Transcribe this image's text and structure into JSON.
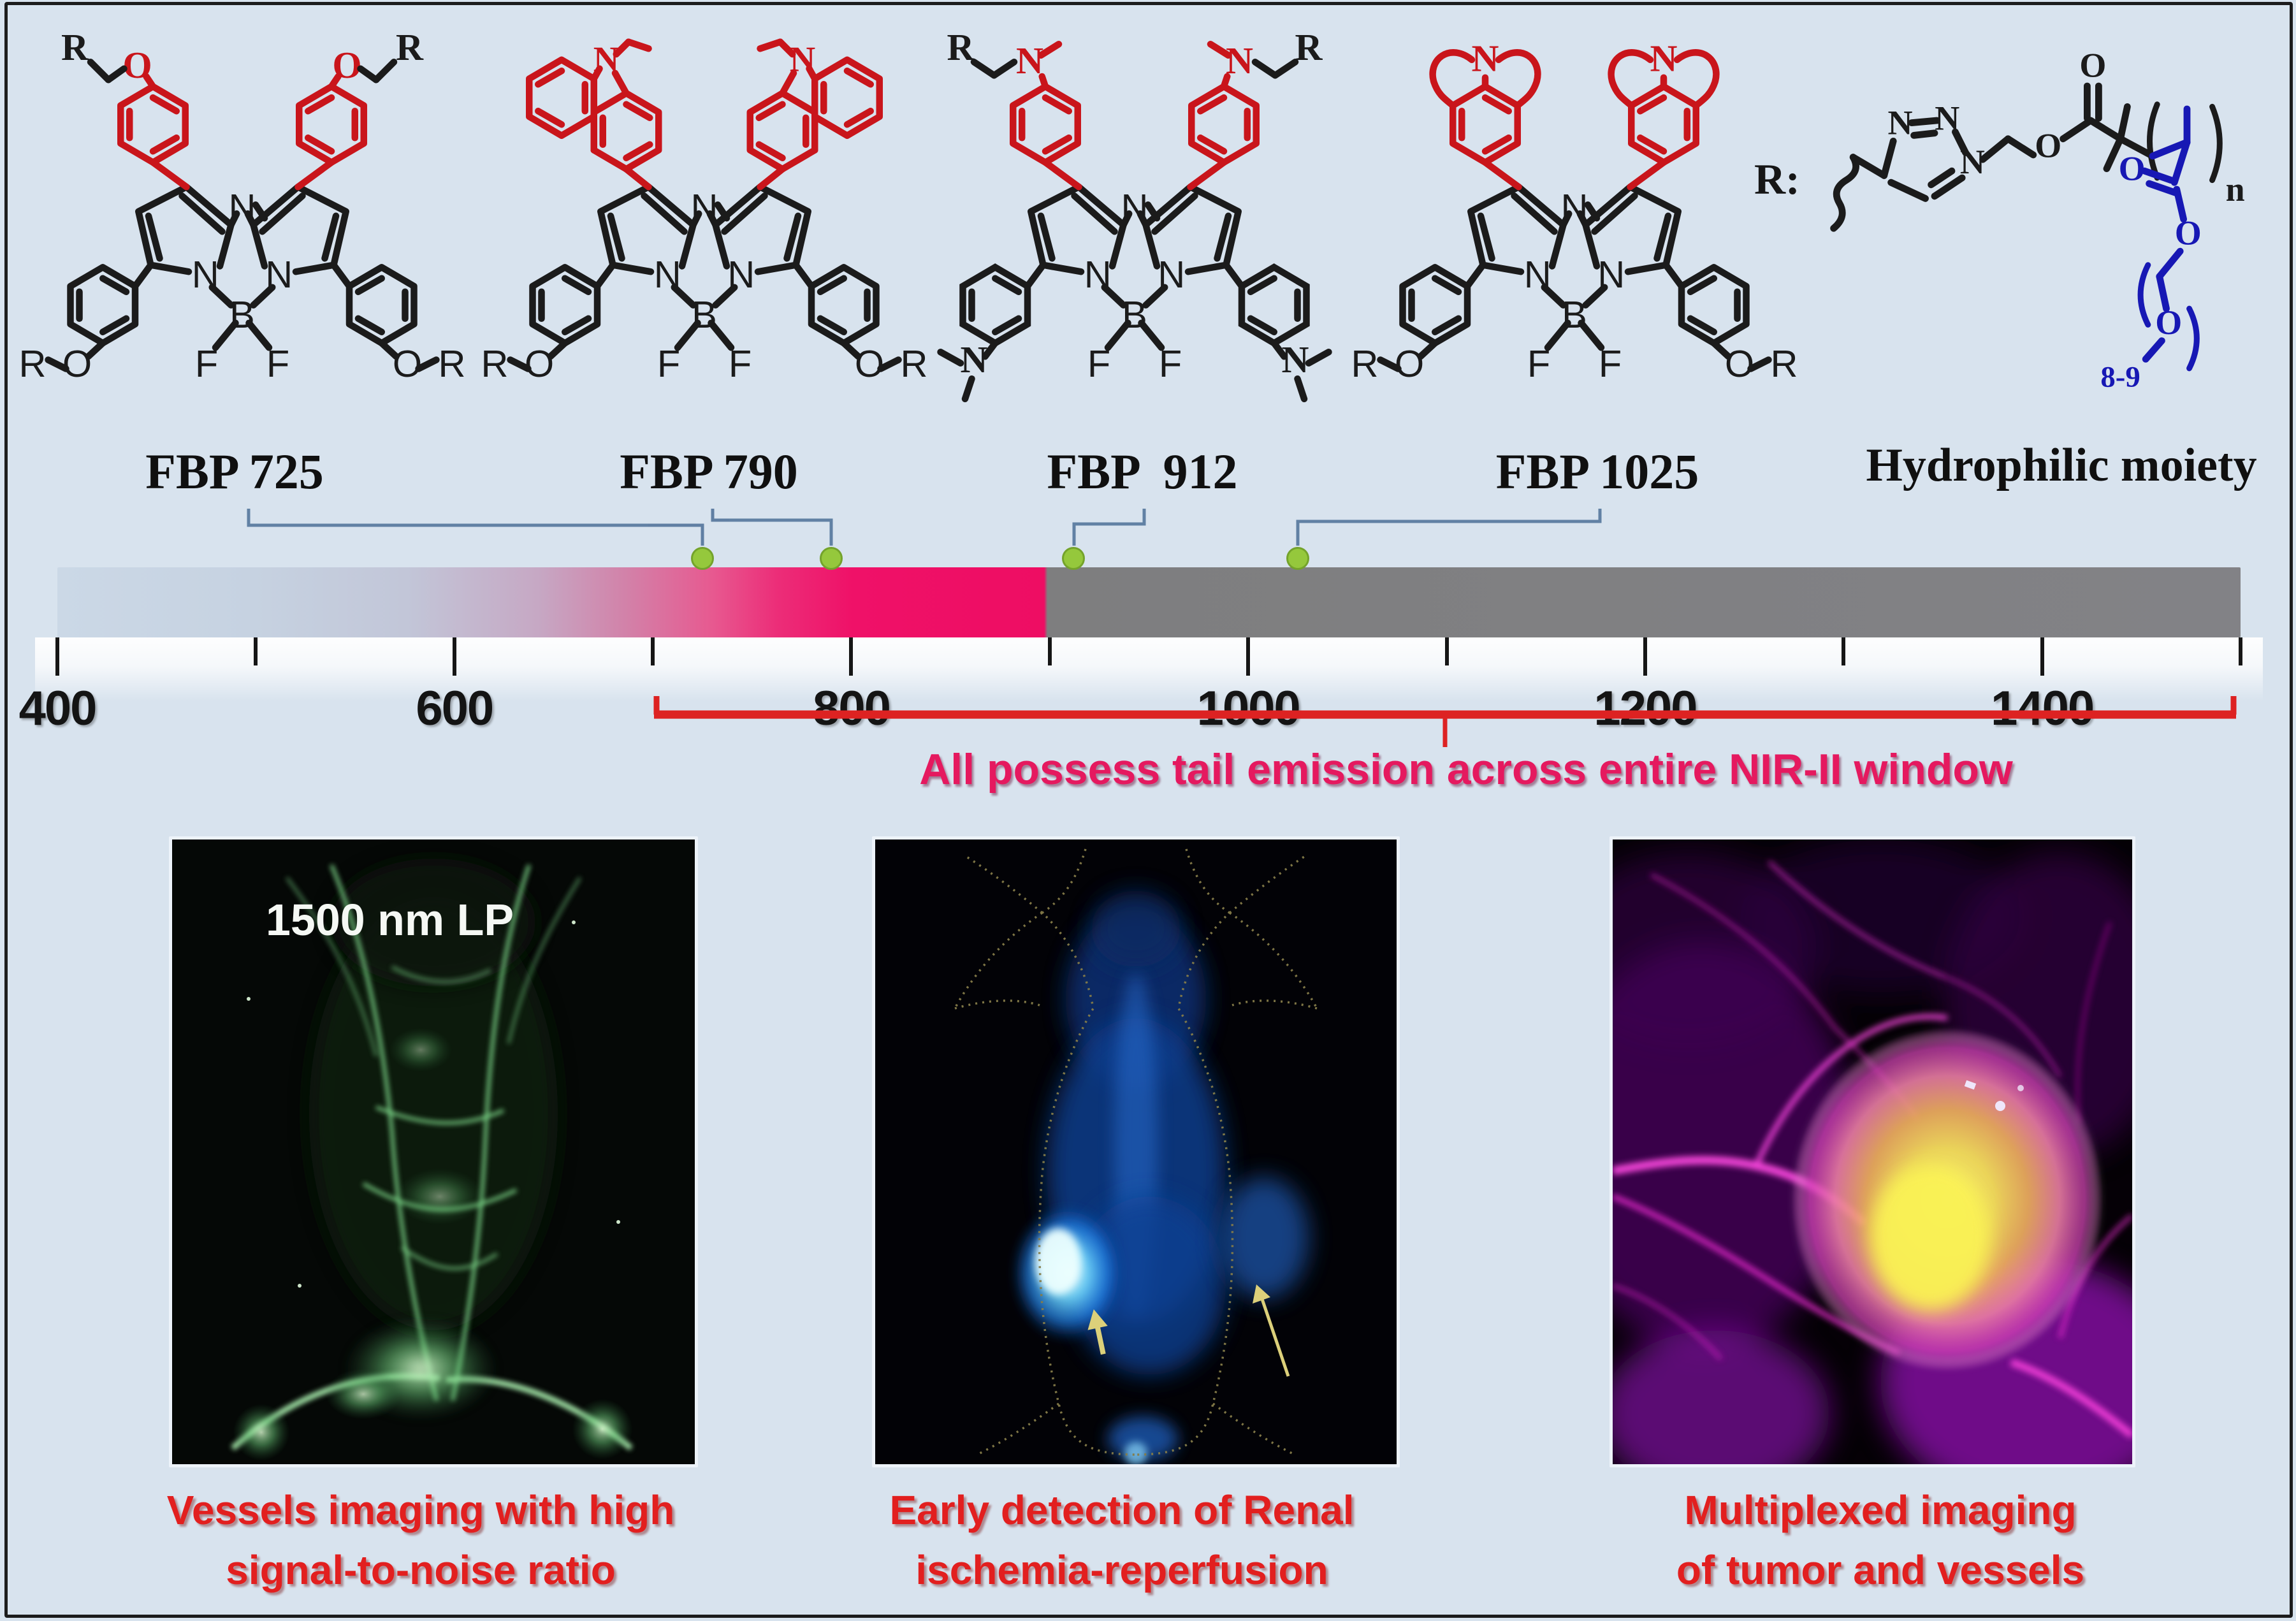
{
  "figure": {
    "background": "#d8e3ee",
    "frame_color": "#1c1c1c"
  },
  "molecules": {
    "compounds": [
      {
        "label": "FBP 725"
      },
      {
        "label": "FBP 790"
      },
      {
        "label": "FBP  912"
      },
      {
        "label": "FBP 1025"
      }
    ],
    "hydrophilic": {
      "prefix": "R:",
      "label": "Hydrophilic moiety",
      "repeat_subscript": "n",
      "peg_units": "8-9"
    },
    "atoms": {
      "N": "N",
      "B": "B",
      "F": "F",
      "O": "O",
      "R": "R"
    },
    "colors": {
      "backbone": "#1b1b1b",
      "donor": "#c9151b",
      "hydrophilic": "#1718b4"
    }
  },
  "spectrum": {
    "unit_range_nm": [
      400,
      1500
    ],
    "ticks": [
      {
        "nm": 400,
        "label": "400"
      },
      {
        "nm": 500
      },
      {
        "nm": 600,
        "label": "600"
      },
      {
        "nm": 700
      },
      {
        "nm": 800,
        "label": "800"
      },
      {
        "nm": 900
      },
      {
        "nm": 1000,
        "label": "1000"
      },
      {
        "nm": 1100
      },
      {
        "nm": 1200,
        "label": "1200"
      },
      {
        "nm": 1300
      },
      {
        "nm": 1400,
        "label": "1400"
      },
      {
        "nm": 1500
      }
    ],
    "dyes": [
      {
        "name": "FBP 725",
        "nm": 725
      },
      {
        "name": "FBP 790",
        "nm": 790
      },
      {
        "name": "FBP 912",
        "nm": 912
      },
      {
        "name": "FBP 1025",
        "nm": 1025
      }
    ],
    "marker_color": "#95c83c",
    "nir_gray_color": "#7f7f82",
    "visible_pink_color": "#ee0d63"
  },
  "annotation": {
    "text": "All possess tail emission across entire NIR-II window",
    "text_color": "#e5195f",
    "bracket_color": "#dd2222",
    "bracket_range_nm": [
      700,
      1500
    ]
  },
  "panels": [
    {
      "name": "vessel-imaging",
      "overlay_label": "1500 nm LP",
      "caption": [
        "Vessels imaging with high",
        "signal-to-noise ratio"
      ]
    },
    {
      "name": "renal-imaging",
      "caption": [
        "Early detection of Renal",
        "ischemia-reperfusion"
      ]
    },
    {
      "name": "tumor-imaging",
      "caption": [
        "Multiplexed imaging",
        "of tumor and vessels"
      ]
    }
  ],
  "caption_color": "#e21f1f"
}
